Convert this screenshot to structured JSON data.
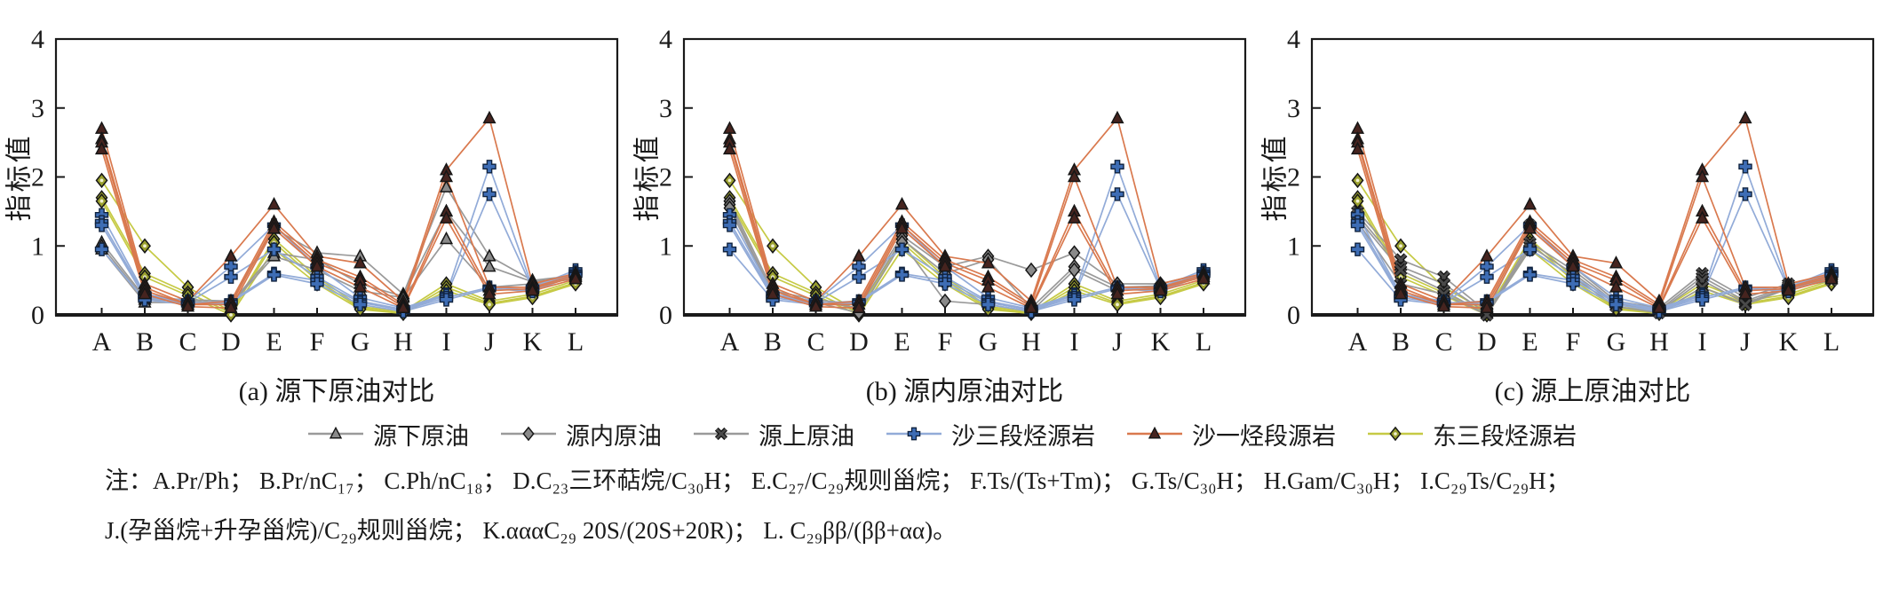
{
  "legend": {
    "items": [
      {
        "label": "源下原油",
        "marker": "triangle",
        "line_color": "#9a9a9a",
        "marker_color": "#8a8a8a"
      },
      {
        "label": "源内原油",
        "marker": "diamond",
        "line_color": "#9a9a9a",
        "marker_color": "#8a8a8a"
      },
      {
        "label": "源上原油",
        "marker": "x",
        "line_color": "#9a9a9a",
        "marker_color": "#4a4a4a"
      },
      {
        "label": "沙三段烃源岩",
        "marker": "plus",
        "line_color": "#92abd8",
        "marker_color": "#3e6db5"
      },
      {
        "label": "沙一烃段源岩",
        "marker": "triangle",
        "line_color": "#d9794e",
        "marker_color": "#46241f"
      },
      {
        "label": "东三段烃源岩",
        "marker": "diamond-dot",
        "line_color": "#c6ca45",
        "marker_color": "#9aa02e"
      }
    ]
  },
  "note": {
    "line1": "注：A.Pr/Ph；  B.Pr/nC₁₇；  C.Ph/nC₁₈；  D.C₂₃三环萜烷/C₃₀H；  E.C₂₇/C₂₉规则甾烷；  F.Ts/(Ts+Tm)；  G.Ts/C₃₀H；  H.Gam/C₃₀H；  I.C₂₉Ts/C₂₉H；",
    "line2": "J.(孕甾烷+升孕甾烷)/C₂₉规则甾烷；  K.αααC₂₉ 20S/(20S+20R)；  L. C₂₉ββ/(ββ+αα)。"
  },
  "chart_data": [
    {
      "type": "line",
      "title": "(a) 源下原油对比",
      "ylabel": "指标值",
      "ylim": [
        0,
        4
      ],
      "ytick_labels": [
        "0",
        "1",
        "2",
        "3",
        "4"
      ],
      "categories": [
        "A",
        "B",
        "C",
        "D",
        "E",
        "F",
        "G",
        "H",
        "I",
        "J",
        "K",
        "L"
      ],
      "series": [
        {
          "name": "东三段烃源岩",
          "marker": "diamond-dot",
          "line_color": "#c6ca45",
          "marker_color": "#9aa02e",
          "lines": [
            [
              1.95,
              1.0,
              0.4,
              0.05,
              1.1,
              0.55,
              0.12,
              0.05,
              0.45,
              0.2,
              0.3,
              0.5
            ],
            [
              1.7,
              0.6,
              0.32,
              0.03,
              1.05,
              0.5,
              0.1,
              0.03,
              0.4,
              0.17,
              0.27,
              0.47
            ],
            [
              1.65,
              0.55,
              0.28,
              0.0,
              0.95,
              0.45,
              0.08,
              0.02,
              0.35,
              0.15,
              0.25,
              0.45
            ]
          ]
        },
        {
          "name": "源下原油",
          "marker": "triangle",
          "line_color": "#9a9a9a",
          "marker_color": "#8a8a8a",
          "lines": [
            [
              1.05,
              0.25,
              0.22,
              0.2,
              1.25,
              0.9,
              0.85,
              0.3,
              1.85,
              0.85,
              0.5,
              0.57
            ],
            [
              1.0,
              0.22,
              0.2,
              0.17,
              0.9,
              0.8,
              0.45,
              0.27,
              1.5,
              0.7,
              0.48,
              0.55
            ],
            [
              0.95,
              0.18,
              0.18,
              0.15,
              0.85,
              0.65,
              0.35,
              0.25,
              1.1,
              0.4,
              0.45,
              0.52
            ]
          ]
        },
        {
          "name": "沙三段烃源岩",
          "marker": "plus",
          "line_color": "#92abd8",
          "marker_color": "#3e6db5",
          "lines": [
            [
              1.45,
              0.3,
              0.2,
              0.7,
              1.3,
              0.7,
              0.25,
              0.1,
              0.3,
              2.15,
              0.4,
              0.65
            ],
            [
              1.35,
              0.28,
              0.18,
              0.55,
              0.95,
              0.55,
              0.2,
              0.08,
              0.28,
              1.75,
              0.38,
              0.62
            ],
            [
              1.3,
              0.25,
              0.17,
              0.2,
              0.6,
              0.5,
              0.18,
              0.07,
              0.25,
              0.4,
              0.36,
              0.6
            ],
            [
              0.95,
              0.22,
              0.15,
              0.18,
              0.58,
              0.45,
              0.15,
              0.05,
              0.22,
              0.38,
              0.34,
              0.58
            ]
          ]
        },
        {
          "name": "沙一烃段源岩",
          "marker": "triangle",
          "line_color": "#d9794e",
          "marker_color": "#46241f",
          "lines": [
            [
              2.7,
              0.45,
              0.2,
              0.85,
              1.6,
              0.85,
              0.75,
              0.2,
              2.1,
              2.85,
              0.45,
              0.6
            ],
            [
              2.55,
              0.4,
              0.15,
              0.2,
              1.35,
              0.8,
              0.55,
              0.15,
              2.0,
              0.4,
              0.4,
              0.58
            ],
            [
              2.5,
              0.35,
              0.15,
              0.15,
              1.3,
              0.75,
              0.5,
              0.12,
              1.5,
              0.35,
              0.38,
              0.55
            ],
            [
              2.4,
              0.3,
              0.12,
              0.1,
              1.25,
              0.7,
              0.4,
              0.1,
              1.4,
              0.3,
              0.35,
              0.52
            ]
          ]
        }
      ]
    },
    {
      "type": "line",
      "title": "(b) 源内原油对比",
      "ylabel": "指标值",
      "ylim": [
        0,
        4
      ],
      "ytick_labels": [
        "0",
        "1",
        "2",
        "3",
        "4"
      ],
      "categories": [
        "A",
        "B",
        "C",
        "D",
        "E",
        "F",
        "G",
        "H",
        "I",
        "J",
        "K",
        "L"
      ],
      "series": [
        {
          "name": "东三段烃源岩",
          "marker": "diamond-dot",
          "line_color": "#c6ca45",
          "marker_color": "#9aa02e",
          "lines": [
            [
              1.95,
              1.0,
              0.4,
              0.05,
              1.1,
              0.55,
              0.12,
              0.05,
              0.45,
              0.2,
              0.3,
              0.5
            ],
            [
              1.7,
              0.6,
              0.32,
              0.03,
              1.05,
              0.5,
              0.1,
              0.03,
              0.4,
              0.17,
              0.27,
              0.47
            ],
            [
              1.65,
              0.55,
              0.28,
              0.0,
              0.95,
              0.45,
              0.08,
              0.02,
              0.35,
              0.15,
              0.25,
              0.45
            ]
          ]
        },
        {
          "name": "源内原油",
          "marker": "diamond",
          "line_color": "#9a9a9a",
          "marker_color": "#8a8a8a",
          "lines": [
            [
              1.65,
              0.35,
              0.22,
              0.15,
              1.15,
              0.7,
              0.85,
              0.65,
              0.9,
              0.45,
              0.45,
              0.6
            ],
            [
              1.6,
              0.3,
              0.2,
              0.1,
              1.1,
              0.6,
              0.8,
              0.1,
              0.7,
              0.4,
              0.42,
              0.57
            ],
            [
              1.55,
              0.28,
              0.18,
              0.03,
              1.05,
              0.2,
              0.15,
              0.05,
              0.65,
              0.35,
              0.4,
              0.55
            ]
          ]
        },
        {
          "name": "沙三段烃源岩",
          "marker": "plus",
          "line_color": "#92abd8",
          "marker_color": "#3e6db5",
          "lines": [
            [
              1.45,
              0.3,
              0.2,
              0.7,
              1.3,
              0.7,
              0.25,
              0.1,
              0.3,
              2.15,
              0.4,
              0.65
            ],
            [
              1.35,
              0.28,
              0.18,
              0.55,
              0.95,
              0.55,
              0.2,
              0.08,
              0.28,
              1.75,
              0.38,
              0.62
            ],
            [
              1.3,
              0.25,
              0.17,
              0.2,
              0.6,
              0.5,
              0.18,
              0.07,
              0.25,
              0.4,
              0.36,
              0.6
            ],
            [
              0.95,
              0.22,
              0.15,
              0.18,
              0.58,
              0.45,
              0.15,
              0.05,
              0.22,
              0.38,
              0.34,
              0.58
            ]
          ]
        },
        {
          "name": "沙一烃段源岩",
          "marker": "triangle",
          "line_color": "#d9794e",
          "marker_color": "#46241f",
          "lines": [
            [
              2.7,
              0.45,
              0.2,
              0.85,
              1.6,
              0.85,
              0.75,
              0.2,
              2.1,
              2.85,
              0.45,
              0.6
            ],
            [
              2.55,
              0.4,
              0.15,
              0.2,
              1.35,
              0.8,
              0.55,
              0.15,
              2.0,
              0.4,
              0.4,
              0.58
            ],
            [
              2.5,
              0.35,
              0.15,
              0.15,
              1.3,
              0.75,
              0.5,
              0.12,
              1.5,
              0.35,
              0.38,
              0.55
            ],
            [
              2.4,
              0.3,
              0.12,
              0.1,
              1.25,
              0.7,
              0.4,
              0.1,
              1.4,
              0.3,
              0.35,
              0.52
            ]
          ]
        }
      ]
    },
    {
      "type": "line",
      "title": "(c) 源上原油对比",
      "ylabel": "指标值",
      "ylim": [
        0,
        4
      ],
      "ytick_labels": [
        "0",
        "1",
        "2",
        "3",
        "4"
      ],
      "categories": [
        "A",
        "B",
        "C",
        "D",
        "E",
        "F",
        "G",
        "H",
        "I",
        "J",
        "K",
        "L"
      ],
      "series": [
        {
          "name": "东三段烃源岩",
          "marker": "diamond-dot",
          "line_color": "#c6ca45",
          "marker_color": "#9aa02e",
          "lines": [
            [
              1.95,
              1.0,
              0.4,
              0.05,
              1.1,
              0.55,
              0.12,
              0.05,
              0.45,
              0.2,
              0.3,
              0.5
            ],
            [
              1.7,
              0.6,
              0.32,
              0.03,
              1.05,
              0.5,
              0.1,
              0.03,
              0.4,
              0.17,
              0.27,
              0.47
            ],
            [
              1.65,
              0.55,
              0.28,
              0.0,
              0.95,
              0.45,
              0.08,
              0.02,
              0.35,
              0.15,
              0.25,
              0.45
            ]
          ]
        },
        {
          "name": "源上原油",
          "marker": "x",
          "line_color": "#9a9a9a",
          "marker_color": "#4a4a4a",
          "lines": [
            [
              1.5,
              0.8,
              0.55,
              0.05,
              1.3,
              0.7,
              0.2,
              0.1,
              0.6,
              0.25,
              0.45,
              0.57
            ],
            [
              1.45,
              0.7,
              0.45,
              0.02,
              1.05,
              0.65,
              0.17,
              0.07,
              0.55,
              0.2,
              0.42,
              0.55
            ],
            [
              1.4,
              0.65,
              0.35,
              0.0,
              1.0,
              0.6,
              0.15,
              0.05,
              0.5,
              0.17,
              0.4,
              0.52
            ],
            [
              1.35,
              0.45,
              0.3,
              0.0,
              0.95,
              0.55,
              0.12,
              0.03,
              0.4,
              0.15,
              0.38,
              0.5
            ]
          ]
        },
        {
          "name": "沙三段烃源岩",
          "marker": "plus",
          "line_color": "#92abd8",
          "marker_color": "#3e6db5",
          "lines": [
            [
              1.45,
              0.3,
              0.2,
              0.7,
              1.3,
              0.7,
              0.25,
              0.1,
              0.3,
              2.15,
              0.4,
              0.65
            ],
            [
              1.35,
              0.28,
              0.18,
              0.55,
              0.95,
              0.55,
              0.2,
              0.08,
              0.28,
              1.75,
              0.38,
              0.62
            ],
            [
              1.3,
              0.25,
              0.17,
              0.2,
              0.6,
              0.5,
              0.18,
              0.07,
              0.25,
              0.4,
              0.36,
              0.6
            ],
            [
              0.95,
              0.22,
              0.15,
              0.18,
              0.58,
              0.45,
              0.15,
              0.05,
              0.22,
              0.38,
              0.34,
              0.58
            ]
          ]
        },
        {
          "name": "沙一烃段源岩",
          "marker": "triangle",
          "line_color": "#d9794e",
          "marker_color": "#46241f",
          "lines": [
            [
              2.7,
              0.45,
              0.2,
              0.85,
              1.6,
              0.85,
              0.75,
              0.2,
              2.1,
              2.85,
              0.45,
              0.6
            ],
            [
              2.55,
              0.4,
              0.15,
              0.2,
              1.35,
              0.8,
              0.55,
              0.15,
              2.0,
              0.4,
              0.4,
              0.58
            ],
            [
              2.5,
              0.35,
              0.15,
              0.15,
              1.3,
              0.75,
              0.5,
              0.12,
              1.5,
              0.35,
              0.38,
              0.55
            ],
            [
              2.4,
              0.3,
              0.12,
              0.1,
              1.25,
              0.7,
              0.4,
              0.1,
              1.4,
              0.3,
              0.35,
              0.52
            ]
          ]
        }
      ]
    }
  ]
}
